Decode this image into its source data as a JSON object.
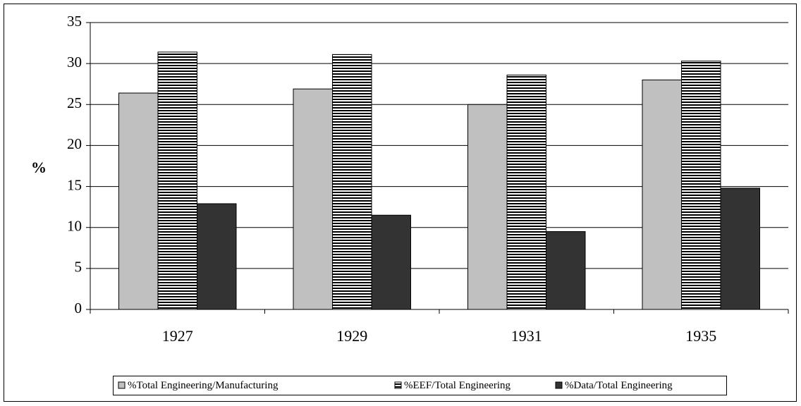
{
  "chart_data": {
    "type": "bar",
    "y_label": "%",
    "categories": [
      "1927",
      "1929",
      "1931",
      "1935"
    ],
    "series": [
      {
        "name": "%Total Engineering/Manufacturing",
        "color": "#c0c0c0",
        "pattern": "solid",
        "values": [
          26.4,
          26.9,
          25.0,
          28.0
        ]
      },
      {
        "name": "%EEF/Total Engineering",
        "color": "#000000",
        "pattern": "horizontal-stripes",
        "values": [
          31.4,
          31.1,
          28.6,
          30.3
        ]
      },
      {
        "name": "%Data/Total Engineering",
        "color": "#333333",
        "pattern": "solid",
        "values": [
          12.9,
          11.5,
          9.5,
          14.8
        ]
      }
    ],
    "ylim": [
      0,
      35
    ],
    "yticks": [
      0,
      5,
      10,
      15,
      20,
      25,
      30,
      35
    ],
    "grid": true,
    "legend": "bottom"
  }
}
